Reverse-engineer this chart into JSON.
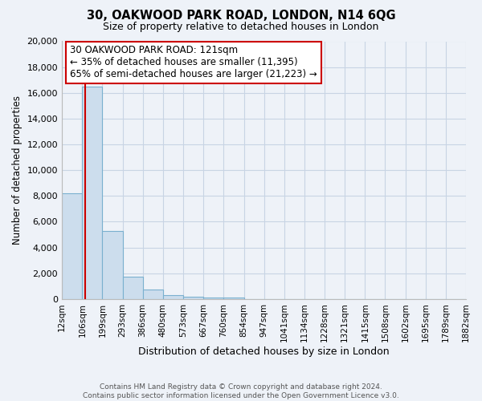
{
  "title": "30, OAKWOOD PARK ROAD, LONDON, N14 6QG",
  "subtitle": "Size of property relative to detached houses in London",
  "xlabel": "Distribution of detached houses by size in London",
  "ylabel": "Number of detached properties",
  "bar_values": [
    8200,
    16500,
    5300,
    1750,
    750,
    300,
    150,
    100,
    100,
    0,
    0,
    0,
    0,
    0,
    0,
    0,
    0,
    0,
    0,
    0
  ],
  "bin_labels": [
    "12sqm",
    "106sqm",
    "199sqm",
    "293sqm",
    "386sqm",
    "480sqm",
    "573sqm",
    "667sqm",
    "760sqm",
    "854sqm",
    "947sqm",
    "1041sqm",
    "1134sqm",
    "1228sqm",
    "1321sqm",
    "1415sqm",
    "1508sqm",
    "1602sqm",
    "1695sqm",
    "1789sqm",
    "1882sqm"
  ],
  "bar_color": "#ccdded",
  "bar_edge_color": "#7ab0cf",
  "property_line_x": 121,
  "property_line_color": "#cc0000",
  "annotation_title": "30 OAKWOOD PARK ROAD: 121sqm",
  "annotation_line1": "← 35% of detached houses are smaller (11,395)",
  "annotation_line2": "65% of semi-detached houses are larger (21,223) →",
  "annotation_box_color": "#ffffff",
  "annotation_box_edge": "#cc0000",
  "ylim": [
    0,
    20000
  ],
  "yticks": [
    0,
    2000,
    4000,
    6000,
    8000,
    10000,
    12000,
    14000,
    16000,
    18000,
    20000
  ],
  "grid_color": "#c8d4e4",
  "background_color": "#eef2f8",
  "footer_line1": "Contains HM Land Registry data © Crown copyright and database right 2024.",
  "footer_line2": "Contains public sector information licensed under the Open Government Licence v3.0.",
  "bin_edges_sqm": [
    12,
    106,
    199,
    293,
    386,
    480,
    573,
    667,
    760,
    854,
    947,
    1041,
    1134,
    1228,
    1321,
    1415,
    1508,
    1602,
    1695,
    1789,
    1882
  ]
}
